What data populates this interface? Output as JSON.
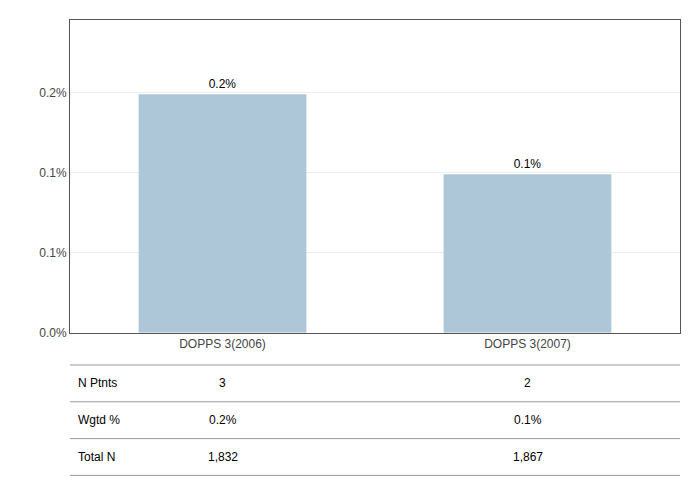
{
  "chart_data": {
    "type": "bar",
    "categories": [
      "DOPPS 3(2006)",
      "DOPPS 3(2007)"
    ],
    "values": [
      0.00164,
      0.00109
    ],
    "value_labels": [
      "0.2%",
      "0.1%"
    ],
    "data_labels": true,
    "color": "#adc6d8",
    "ylim": [
      0,
      0.00215
    ],
    "yticks": [
      {
        "value": 0.0,
        "label": "0.0%"
      },
      {
        "value": 0.00055,
        "label": "0.1%"
      },
      {
        "value": 0.0011,
        "label": "0.1%"
      },
      {
        "value": 0.00165,
        "label": "0.2%"
      }
    ],
    "grid": true,
    "table": {
      "row_labels": [
        "N Ptnts",
        "Wgtd %",
        "Total N"
      ],
      "cells": [
        [
          "3",
          "2"
        ],
        [
          "0.2%",
          "0.1%"
        ],
        [
          "1,832",
          "1,867"
        ]
      ]
    }
  }
}
